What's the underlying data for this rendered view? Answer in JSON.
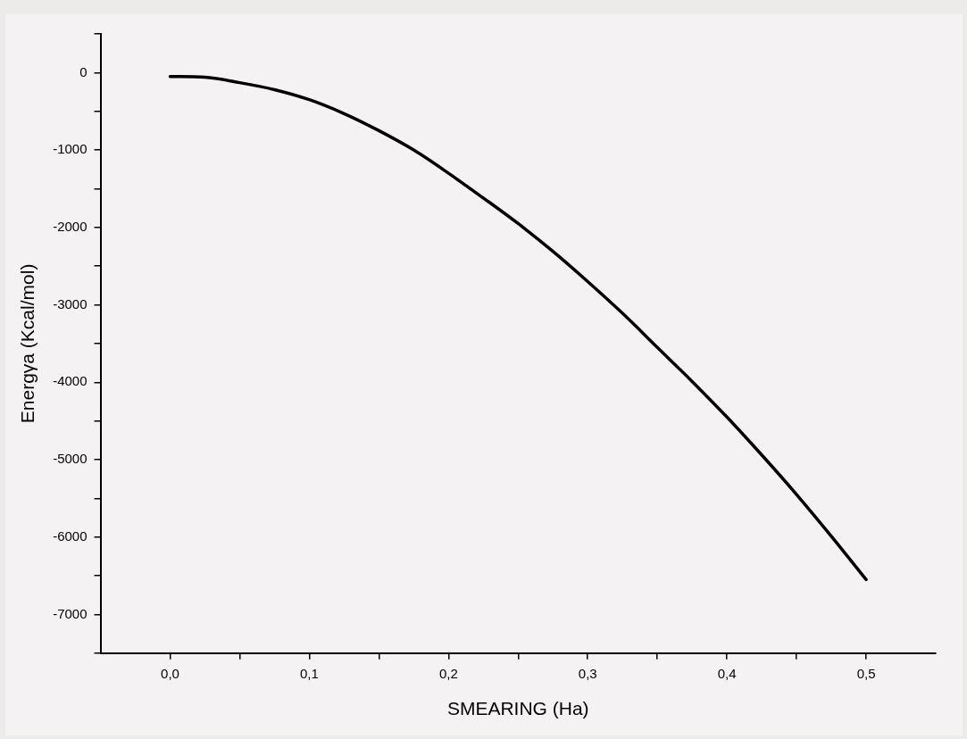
{
  "chart_data": {
    "type": "line",
    "xlabel": "SMEARING (Ha)",
    "ylabel": "Energγa (Kcal/mol)",
    "x": [
      0,
      0.025,
      0.05,
      0.075,
      0.1,
      0.125,
      0.15,
      0.175,
      0.2,
      0.225,
      0.25,
      0.275,
      0.3,
      0.325,
      0.35,
      0.375,
      0.4,
      0.425,
      0.45,
      0.475,
      0.5
    ],
    "series": [
      {
        "color": "#000000",
        "values": [
          -50,
          -60,
          -130,
          -220,
          -350,
          -530,
          -750,
          -1000,
          -1300,
          -1620,
          -1950,
          -2310,
          -2700,
          -3110,
          -3550,
          -3990,
          -4450,
          -4940,
          -5450,
          -5990,
          -6550
        ]
      }
    ],
    "xlim": [
      -0.05,
      0.55
    ],
    "xticks": [
      {
        "value": 0,
        "label": "0,0"
      },
      {
        "value": 0.05,
        "label": null
      },
      {
        "value": 0.1,
        "label": "0,1"
      },
      {
        "value": 0.15,
        "label": null
      },
      {
        "value": 0.2,
        "label": "0,2"
      },
      {
        "value": 0.25,
        "label": null
      },
      {
        "value": 0.3,
        "label": "0,3"
      },
      {
        "value": 0.35,
        "label": null
      },
      {
        "value": 0.4,
        "label": "0,4"
      },
      {
        "value": 0.45,
        "label": null
      },
      {
        "value": 0.5,
        "label": "0,5"
      }
    ],
    "ylim": [
      -7500,
      500
    ],
    "yticks": [
      {
        "value": 500,
        "label": null
      },
      0,
      {
        "value": -500,
        "label": null
      },
      -1000,
      {
        "value": -1500,
        "label": null
      },
      -2000,
      {
        "value": -2500,
        "label": null
      },
      -3000,
      {
        "value": -3500,
        "label": null
      },
      -4000,
      {
        "value": -4500,
        "label": null
      },
      -5000,
      {
        "value": -5500,
        "label": null
      },
      -6000,
      {
        "value": -6500,
        "label": null
      },
      -7000,
      {
        "value": -7500,
        "label": null
      }
    ],
    "grid": false,
    "legend": false,
    "marker": "none",
    "line_style": "solid"
  }
}
